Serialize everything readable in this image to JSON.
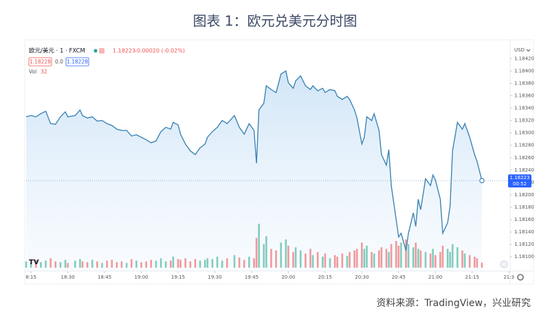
{
  "chart_data": {
    "type": "line",
    "title": "图表 1：欧元兑美元分时图",
    "source": "资料来源：TradingView，兴业研究",
    "change": "-0.00020 (-0.02%)",
    "last": "1.18223",
    "bid": "1.18228",
    "spread": "0.0",
    "ask": "1.18228",
    "volume_last": "32",
    "currency": "USD",
    "price_tag": "1.18223",
    "countdown": "00:52",
    "x": [
      1093,
      1095,
      1097,
      1099,
      1101,
      1103,
      1105,
      1107,
      1109,
      1110,
      1113,
      1115,
      1116,
      1118,
      1120,
      1122,
      1124,
      1126,
      1128,
      1130,
      1132,
      1134,
      1136,
      1138,
      1140,
      1142,
      1144,
      1146,
      1148,
      1150,
      1152,
      1153,
      1155,
      1156,
      1158,
      1160,
      1162,
      1164,
      1166,
      1167,
      1169,
      1171,
      1173,
      1175,
      1178,
      1180,
      1182,
      1184,
      1186,
      1187,
      1188,
      1190,
      1191,
      1193,
      1195,
      1197,
      1199,
      1200,
      1202,
      1203,
      1205,
      1207,
      1209,
      1210,
      1212,
      1214,
      1215,
      1217,
      1219,
      1220,
      1222,
      1224,
      1225,
      1227,
      1228,
      1230,
      1231,
      1232,
      1234,
      1235,
      1237,
      1238,
      1240,
      1241,
      1242,
      1244,
      1245,
      1246,
      1248,
      1249,
      1251,
      1252,
      1253,
      1254,
      1256,
      1258,
      1259,
      1260,
      1262,
      1263,
      1265,
      1266,
      1267,
      1269,
      1271,
      1272,
      1274,
      1276,
      1277,
      1279
    ],
    "series": [
      {
        "name": "欧元/美元 · 1 · FXCM",
        "color": "#3d84b4",
        "fill": "#d6e8f8",
        "values": [
          1.18326,
          1.18328,
          1.18326,
          1.18331,
          1.18335,
          1.18315,
          1.18314,
          1.18326,
          1.18334,
          1.18326,
          1.18328,
          1.18337,
          1.18328,
          1.18324,
          1.18326,
          1.18319,
          1.1832,
          1.18315,
          1.18312,
          1.18306,
          1.18304,
          1.18304,
          1.18295,
          1.18297,
          1.18293,
          1.18289,
          1.18284,
          1.18287,
          1.18302,
          1.18309,
          1.18306,
          1.18317,
          1.18313,
          1.18298,
          1.18282,
          1.18271,
          1.18265,
          1.18276,
          1.18282,
          1.18293,
          1.18302,
          1.18309,
          1.1832,
          1.18315,
          1.18328,
          1.18309,
          1.18298,
          1.18315,
          1.18304,
          1.18251,
          1.18337,
          1.18348,
          1.18376,
          1.1837,
          1.18365,
          1.18395,
          1.184,
          1.18381,
          1.18372,
          1.18384,
          1.18392,
          1.18376,
          1.1837,
          1.18376,
          1.18368,
          1.18372,
          1.18365,
          1.1837,
          1.18368,
          1.18359,
          1.18354,
          1.18359,
          1.18354,
          1.18337,
          1.18324,
          1.18282,
          1.18293,
          1.18326,
          1.1832,
          1.18331,
          1.18304,
          1.18265,
          1.18248,
          1.18273,
          1.18215,
          1.1816,
          1.18132,
          1.18138,
          1.1811,
          1.18138,
          1.18171,
          1.18149,
          1.18193,
          1.18176,
          1.18226,
          1.18215,
          1.18232,
          1.18224,
          1.18193,
          1.18138,
          1.18155,
          1.18182,
          1.18271,
          1.18317,
          1.18306,
          1.18315,
          1.18293,
          1.18265,
          1.18254,
          1.18223
        ]
      },
      {
        "name": "Vol",
        "axis": "y2",
        "color": "#6cc3b0",
        "down_color": "#f0868a",
        "values": [
          40,
          30,
          50,
          35,
          45,
          60,
          40,
          35,
          50,
          30,
          45,
          55,
          40,
          35,
          50,
          40,
          30,
          45,
          50,
          35,
          40,
          30,
          55,
          45,
          35,
          40,
          50,
          45,
          60,
          40,
          45,
          70,
          55,
          50,
          60,
          40,
          55,
          45,
          50,
          60,
          55,
          70,
          45,
          60,
          80,
          65,
          50,
          70,
          60,
          190,
          280,
          150,
          200,
          120,
          110,
          160,
          180,
          140,
          100,
          130,
          110,
          90,
          120,
          80,
          100,
          70,
          90,
          60,
          80,
          70,
          90,
          75,
          100,
          110,
          120,
          160,
          120,
          140,
          100,
          90,
          110,
          130,
          120,
          100,
          150,
          170,
          140,
          160,
          180,
          150,
          130,
          160,
          120,
          110,
          100,
          90,
          120,
          80,
          100,
          140,
          120,
          100,
          150,
          130,
          110,
          90,
          80,
          70,
          60,
          32
        ]
      }
    ],
    "xlim": [
      1093,
      1290.5
    ],
    "xticks": [
      {
        "value": 1095,
        "label": "8:15"
      },
      {
        "value": 1110,
        "label": "18:30"
      },
      {
        "value": 1125,
        "label": "18:45"
      },
      {
        "value": 1140,
        "label": "19:00"
      },
      {
        "value": 1155,
        "label": "19:15"
      },
      {
        "value": 1170,
        "label": "19:30"
      },
      {
        "value": 1185,
        "label": "19:45"
      },
      {
        "value": 1200,
        "label": "20:00"
      },
      {
        "value": 1215,
        "label": "20:15"
      },
      {
        "value": 1230,
        "label": "20:30"
      },
      {
        "value": 1245,
        "label": "20:45"
      },
      {
        "value": 1260,
        "label": "21:00"
      },
      {
        "value": 1275,
        "label": "21:15"
      },
      {
        "value": 1290,
        "label": "21:3"
      }
    ],
    "ylim": [
      1.18077,
      1.18448
    ],
    "yticks": [
      {
        "value": 1.181,
        "label": "1.18100"
      },
      {
        "value": 1.1812,
        "label": "1.18120"
      },
      {
        "value": 1.1814,
        "label": "1.18140"
      },
      {
        "value": 1.1816,
        "label": "1.18160"
      },
      {
        "value": 1.1818,
        "label": "1.18180"
      },
      {
        "value": 1.182,
        "label": "1.18200"
      },
      {
        "value": 1.1822,
        "label": "1.18220"
      },
      {
        "value": 1.1824,
        "label": "1.18240"
      },
      {
        "value": 1.1826,
        "label": "1.18260"
      },
      {
        "value": 1.1828,
        "label": "1.18280"
      },
      {
        "value": 1.183,
        "label": "1.18300"
      },
      {
        "value": 1.1832,
        "label": "1.18320"
      },
      {
        "value": 1.1834,
        "label": "1.18340"
      },
      {
        "value": 1.1836,
        "label": "1.18360"
      },
      {
        "value": 1.1838,
        "label": "1.18380"
      },
      {
        "value": 1.184,
        "label": "1.18400"
      },
      {
        "value": 1.1842,
        "label": "1.18420"
      }
    ],
    "y2lim": [
      0,
      350
    ],
    "grid": false
  }
}
